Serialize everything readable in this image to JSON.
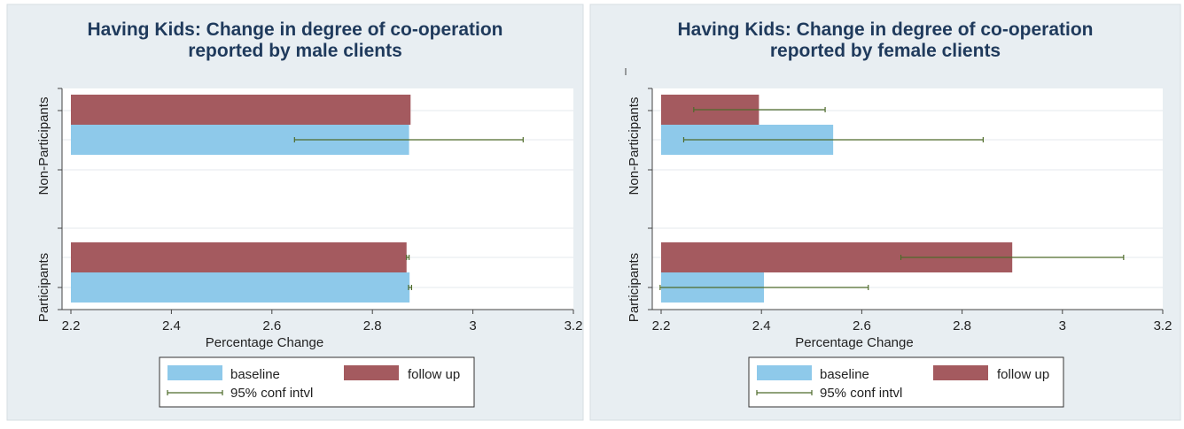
{
  "colors": {
    "baseline": "#8ec9ea",
    "follow_up": "#a45a5f",
    "ci": "#4e6b2a",
    "title": "#1f3a5c",
    "panel_bg": "#e8eef2",
    "plot_bg": "#ffffff"
  },
  "legend": {
    "baseline_label": "baseline",
    "follow_up_label": "follow up",
    "ci_label": "95% conf intvl"
  },
  "chart_data": [
    {
      "type": "bar",
      "orientation": "horizontal",
      "title_line1": "Having Kids: Change in degree of co-operation",
      "title_line2": "reported by male clients",
      "xlabel": "Percentage Change",
      "xlim": [
        2.2,
        3.2
      ],
      "xticks": [
        "2.2",
        "2.4",
        "2.6",
        "2.8",
        "3",
        "3.2"
      ],
      "groups": [
        "Non-Participants",
        "Participants"
      ],
      "series": [
        {
          "name": "baseline",
          "values": [
            2.873,
            2.874
          ],
          "ci": [
            [
              2.645,
              3.1
            ],
            [
              2.872,
              2.878
            ]
          ]
        },
        {
          "name": "follow up",
          "values": [
            2.876,
            2.868
          ],
          "ci": [
            null,
            [
              2.868,
              2.873
            ]
          ]
        }
      ],
      "grid": true,
      "legend_position": "bottom"
    },
    {
      "type": "bar",
      "orientation": "horizontal",
      "title_line1": "Having Kids: Change in degree of co-operation",
      "title_line2": "reported by female clients",
      "xlabel": "Percentage Change",
      "xlim": [
        2.2,
        3.2
      ],
      "xticks": [
        "2.2",
        "2.4",
        "2.6",
        "2.8",
        "3",
        "3.2"
      ],
      "groups": [
        "Non-Participants",
        "Participants"
      ],
      "series": [
        {
          "name": "baseline",
          "values": [
            2.543,
            2.405
          ],
          "ci": [
            [
              2.245,
              2.842
            ],
            [
              2.198,
              2.613
            ]
          ]
        },
        {
          "name": "follow up",
          "values": [
            2.395,
            2.9
          ],
          "ci": [
            [
              2.265,
              2.527
            ],
            [
              2.678,
              3.122
            ]
          ]
        }
      ],
      "grid": true,
      "legend_position": "bottom"
    }
  ]
}
